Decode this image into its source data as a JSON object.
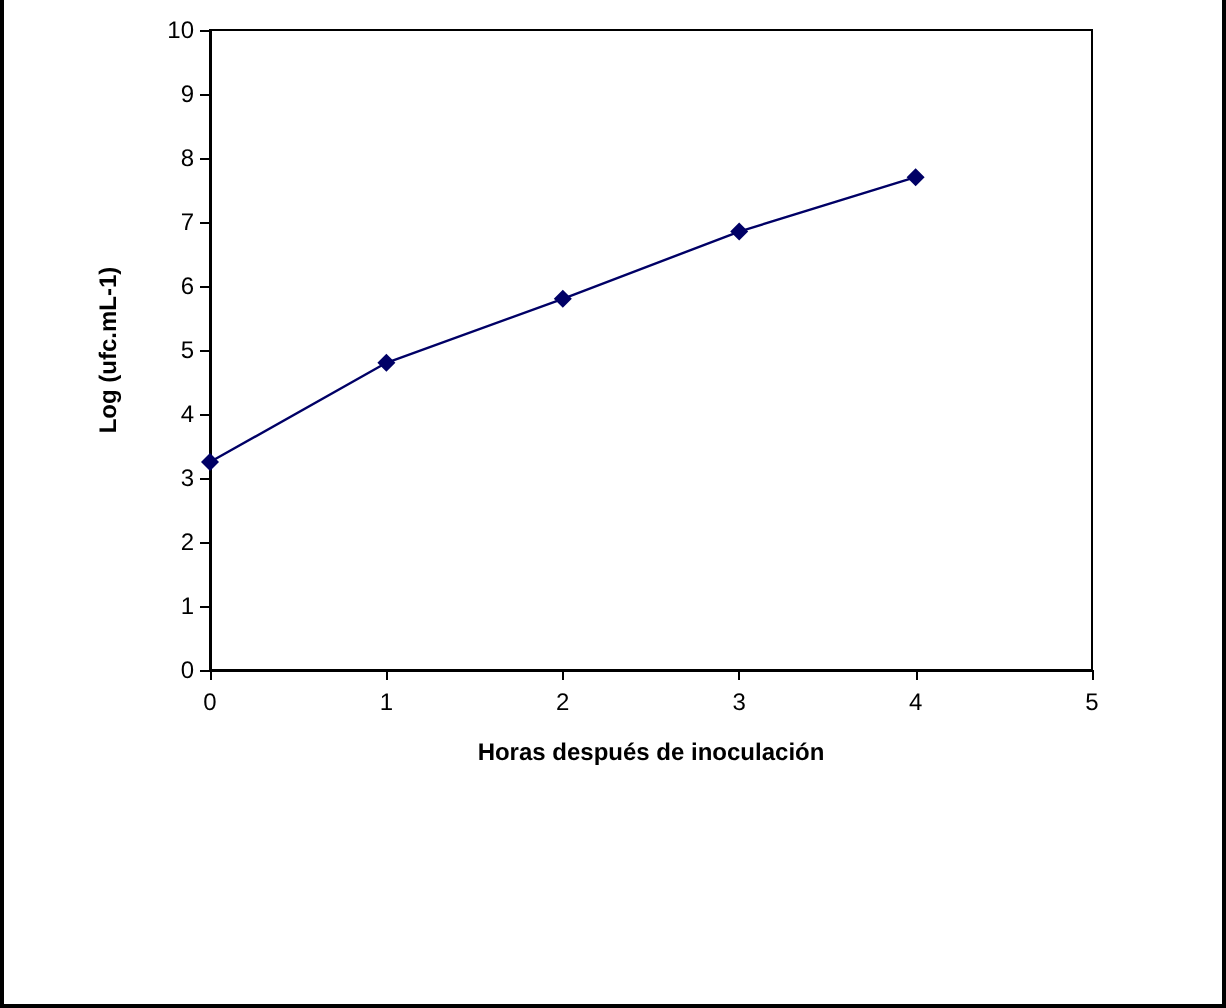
{
  "chart_data": {
    "type": "line",
    "xlabel": "Horas después de inoculación",
    "ylabel": "Log (ufc.mL-1)",
    "x": [
      0,
      1,
      2,
      3,
      4
    ],
    "series": [
      {
        "color": "#000066",
        "values": [
          3.25,
          4.8,
          5.8,
          6.85,
          7.7
        ]
      }
    ],
    "xlim": [
      0,
      5
    ],
    "xticks": [
      0,
      1,
      2,
      3,
      4,
      5
    ],
    "ylim": [
      0,
      10
    ],
    "yticks": [
      0,
      1,
      2,
      3,
      4,
      5,
      6,
      7,
      8,
      9,
      10
    ],
    "grid": false,
    "marker": "diamond",
    "line_style": "solid"
  }
}
